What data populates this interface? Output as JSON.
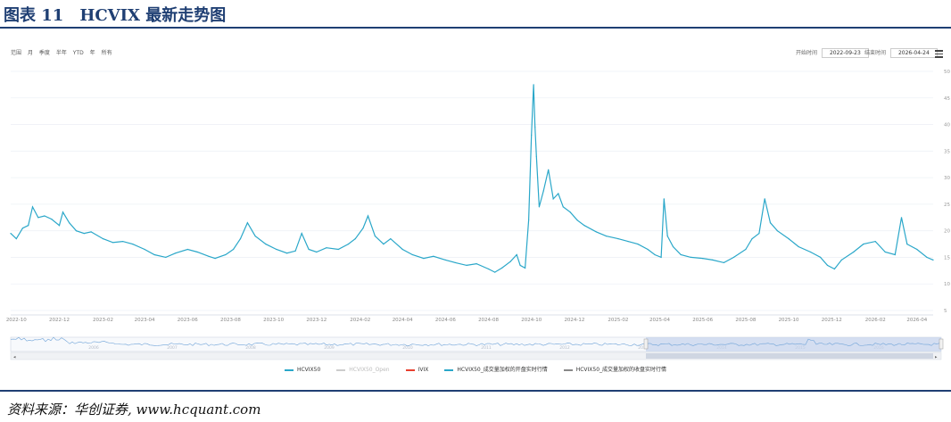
{
  "figure_title": "图表 11　HCVIX 最新走势图",
  "source_note": "资料来源：华创证券, www.hcquant.com",
  "toolbar": {
    "zoom_label": "范围",
    "buttons": [
      "月",
      "季度",
      "半年",
      "YTD",
      "年",
      "所有"
    ],
    "start_label": "开始时间",
    "start_value": "2022-09-23",
    "end_label": "结束时间",
    "end_value": "2026-04-24",
    "menu_icon": "hamburger-menu-icon"
  },
  "colors": {
    "title": "#1f3f73",
    "line": "#2aa7c9",
    "navigator_mask": "#c5d3ec",
    "grid": "#eef1f6"
  },
  "navigator": {
    "years": [
      "2006",
      "2007",
      "2008",
      "2009",
      "2010",
      "2011",
      "2012",
      "2013",
      "2014",
      "2015",
      "2016",
      "2017",
      "2018"
    ]
  },
  "legend": [
    {
      "name": "HCVIX50",
      "color": "#2aa7c9",
      "visible": true
    },
    {
      "name": "HCVIX50_Open",
      "color": "#cccccc",
      "visible": false
    },
    {
      "name": "IVIX",
      "color": "#e8402f",
      "visible": true
    },
    {
      "name": "HCVIX50_成交量加权的开盘实时行情",
      "color": "#2aa7c9",
      "visible": true
    },
    {
      "name": "HCVIX50_成交量加权的收盘实时行情",
      "color": "#888888",
      "visible": true
    }
  ],
  "chart_data": {
    "type": "line",
    "title": "HCVIX 最新走势图",
    "x_range": [
      "2022-09-23",
      "2026-04-24"
    ],
    "x_tick_labels": [
      "2022-10",
      "2022-12",
      "2023-02",
      "2023-04",
      "2023-06",
      "2023-08",
      "2023-10",
      "2023-12",
      "2024-02",
      "2024-04",
      "2024-06",
      "2024-08",
      "2024-10",
      "2024-12",
      "2025-02",
      "2025-04",
      "2025-06",
      "2025-08",
      "2025-10",
      "2025-12",
      "2026-02",
      "2026-04"
    ],
    "y_ticks": [
      5,
      10,
      15,
      20,
      25,
      30,
      35,
      40,
      45,
      50
    ],
    "ylim": [
      5,
      50
    ],
    "grid": true,
    "legend_position": "bottom",
    "series": [
      {
        "name": "HCVIX50",
        "points": [
          [
            "2022-09-23",
            19.5
          ],
          [
            "2022-10-01",
            18.5
          ],
          [
            "2022-10-10",
            20.5
          ],
          [
            "2022-10-18",
            21.0
          ],
          [
            "2022-10-24",
            24.5
          ],
          [
            "2022-11-01",
            22.5
          ],
          [
            "2022-11-10",
            22.8
          ],
          [
            "2022-11-20",
            22.2
          ],
          [
            "2022-12-01",
            21.0
          ],
          [
            "2022-12-06",
            23.5
          ],
          [
            "2022-12-15",
            21.5
          ],
          [
            "2022-12-25",
            20.0
          ],
          [
            "2023-01-05",
            19.5
          ],
          [
            "2023-01-15",
            19.8
          ],
          [
            "2023-02-01",
            18.5
          ],
          [
            "2023-02-15",
            17.8
          ],
          [
            "2023-03-01",
            18.0
          ],
          [
            "2023-03-15",
            17.5
          ],
          [
            "2023-04-01",
            16.5
          ],
          [
            "2023-04-15",
            15.5
          ],
          [
            "2023-05-01",
            15.0
          ],
          [
            "2023-05-15",
            15.8
          ],
          [
            "2023-06-01",
            16.5
          ],
          [
            "2023-06-15",
            16.0
          ],
          [
            "2023-07-01",
            15.2
          ],
          [
            "2023-07-10",
            14.8
          ],
          [
            "2023-07-25",
            15.5
          ],
          [
            "2023-08-05",
            16.5
          ],
          [
            "2023-08-15",
            18.5
          ],
          [
            "2023-08-25",
            21.5
          ],
          [
            "2023-09-05",
            19.0
          ],
          [
            "2023-09-20",
            17.5
          ],
          [
            "2023-10-05",
            16.5
          ],
          [
            "2023-10-20",
            15.8
          ],
          [
            "2023-11-01",
            16.2
          ],
          [
            "2023-11-10",
            19.5
          ],
          [
            "2023-11-20",
            16.5
          ],
          [
            "2023-12-01",
            16.0
          ],
          [
            "2023-12-15",
            16.8
          ],
          [
            "2024-01-01",
            16.5
          ],
          [
            "2024-01-15",
            17.5
          ],
          [
            "2024-01-25",
            18.5
          ],
          [
            "2024-02-05",
            20.5
          ],
          [
            "2024-02-12",
            22.8
          ],
          [
            "2024-02-22",
            19.0
          ],
          [
            "2024-03-05",
            17.5
          ],
          [
            "2024-03-15",
            18.5
          ],
          [
            "2024-04-01",
            16.5
          ],
          [
            "2024-04-15",
            15.5
          ],
          [
            "2024-05-01",
            14.8
          ],
          [
            "2024-05-15",
            15.2
          ],
          [
            "2024-06-01",
            14.5
          ],
          [
            "2024-06-15",
            14.0
          ],
          [
            "2024-07-01",
            13.5
          ],
          [
            "2024-07-15",
            13.8
          ],
          [
            "2024-08-01",
            12.8
          ],
          [
            "2024-08-10",
            12.2
          ],
          [
            "2024-08-20",
            13.0
          ],
          [
            "2024-09-01",
            14.2
          ],
          [
            "2024-09-10",
            15.5
          ],
          [
            "2024-09-15",
            13.5
          ],
          [
            "2024-09-22",
            13.0
          ],
          [
            "2024-09-27",
            22.0
          ],
          [
            "2024-10-01",
            38.0
          ],
          [
            "2024-10-04",
            47.5
          ],
          [
            "2024-10-06",
            39.5
          ],
          [
            "2024-10-08",
            34.0
          ],
          [
            "2024-10-12",
            24.5
          ],
          [
            "2024-10-18",
            27.5
          ],
          [
            "2024-10-25",
            31.5
          ],
          [
            "2024-11-01",
            26.0
          ],
          [
            "2024-11-08",
            27.0
          ],
          [
            "2024-11-15",
            24.5
          ],
          [
            "2024-11-25",
            23.5
          ],
          [
            "2024-12-05",
            22.0
          ],
          [
            "2024-12-15",
            21.0
          ],
          [
            "2025-01-01",
            19.8
          ],
          [
            "2025-01-15",
            19.0
          ],
          [
            "2025-02-01",
            18.5
          ],
          [
            "2025-02-15",
            18.0
          ],
          [
            "2025-03-01",
            17.5
          ],
          [
            "2025-03-15",
            16.5
          ],
          [
            "2025-03-25",
            15.5
          ],
          [
            "2025-04-03",
            15.0
          ],
          [
            "2025-04-07",
            26.0
          ],
          [
            "2025-04-12",
            19.0
          ],
          [
            "2025-04-20",
            17.0
          ],
          [
            "2025-05-01",
            15.5
          ],
          [
            "2025-05-15",
            15.0
          ],
          [
            "2025-06-01",
            14.8
          ],
          [
            "2025-06-15",
            14.5
          ],
          [
            "2025-07-01",
            14.0
          ],
          [
            "2025-07-15",
            15.0
          ],
          [
            "2025-08-01",
            16.5
          ],
          [
            "2025-08-10",
            18.5
          ],
          [
            "2025-08-20",
            19.5
          ],
          [
            "2025-08-28",
            26.0
          ],
          [
            "2025-09-05",
            21.5
          ],
          [
            "2025-09-15",
            20.0
          ],
          [
            "2025-10-01",
            18.5
          ],
          [
            "2025-10-15",
            17.0
          ],
          [
            "2025-11-01",
            16.0
          ],
          [
            "2025-11-15",
            15.0
          ],
          [
            "2025-11-25",
            13.5
          ],
          [
            "2025-12-05",
            12.8
          ],
          [
            "2025-12-15",
            14.5
          ],
          [
            "2026-01-01",
            16.0
          ],
          [
            "2026-01-15",
            17.5
          ],
          [
            "2026-02-01",
            18.0
          ],
          [
            "2026-02-15",
            16.0
          ],
          [
            "2026-03-01",
            15.5
          ],
          [
            "2026-03-10",
            22.5
          ],
          [
            "2026-03-18",
            17.5
          ],
          [
            "2026-04-01",
            16.5
          ],
          [
            "2026-04-15",
            15.0
          ],
          [
            "2026-04-24",
            14.5
          ]
        ]
      }
    ]
  }
}
